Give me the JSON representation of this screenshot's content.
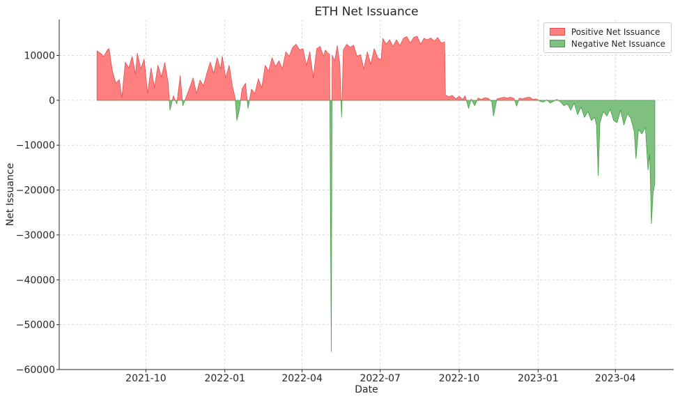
{
  "chart_data": {
    "type": "area",
    "title": "ETH Net Issuance",
    "xlabel": "Date",
    "ylabel": "Net Issuance",
    "x_range": [
      "2021-06-22",
      "2023-06-08"
    ],
    "ylim": [
      -60000,
      18000
    ],
    "x_ticks": [
      {
        "date": "2021-10-01",
        "label": "2021-10"
      },
      {
        "date": "2022-01-01",
        "label": "2022-01"
      },
      {
        "date": "2022-04-01",
        "label": "2022-04"
      },
      {
        "date": "2022-07-01",
        "label": "2022-07"
      },
      {
        "date": "2022-10-01",
        "label": "2022-10"
      },
      {
        "date": "2023-01-01",
        "label": "2023-01"
      },
      {
        "date": "2023-04-01",
        "label": "2023-04"
      }
    ],
    "y_ticks": [
      {
        "value": 10000,
        "label": "10000"
      },
      {
        "value": 0,
        "label": "0"
      },
      {
        "value": -10000,
        "label": "−10000"
      },
      {
        "value": -20000,
        "label": "−20000"
      },
      {
        "value": -30000,
        "label": "−30000"
      },
      {
        "value": -40000,
        "label": "−40000"
      },
      {
        "value": -50000,
        "label": "−50000"
      },
      {
        "value": -60000,
        "label": "−60000"
      }
    ],
    "grid": true,
    "legend_position": "top-right",
    "series": [
      {
        "name": "Positive Net Issuance",
        "color": "#ff7f7f",
        "edge_color": "#e05050"
      },
      {
        "name": "Negative Net Issuance",
        "color": "#7fbf7f",
        "edge_color": "#3f9f3f"
      }
    ],
    "net_issuance": [
      {
        "date": "2021-08-05",
        "value": 11000
      },
      {
        "date": "2021-08-09",
        "value": 10500
      },
      {
        "date": "2021-08-13",
        "value": 9800
      },
      {
        "date": "2021-08-17",
        "value": 11200
      },
      {
        "date": "2021-08-19",
        "value": 11500
      },
      {
        "date": "2021-08-23",
        "value": 6500
      },
      {
        "date": "2021-08-27",
        "value": 3800
      },
      {
        "date": "2021-08-31",
        "value": 4600
      },
      {
        "date": "2021-09-03",
        "value": 600
      },
      {
        "date": "2021-09-07",
        "value": 8500
      },
      {
        "date": "2021-09-11",
        "value": 7200
      },
      {
        "date": "2021-09-15",
        "value": 9800
      },
      {
        "date": "2021-09-19",
        "value": 5800
      },
      {
        "date": "2021-09-21",
        "value": 10500
      },
      {
        "date": "2021-09-25",
        "value": 7000
      },
      {
        "date": "2021-09-29",
        "value": 9200
      },
      {
        "date": "2021-10-03",
        "value": 1500
      },
      {
        "date": "2021-10-07",
        "value": 7200
      },
      {
        "date": "2021-10-11",
        "value": 2800
      },
      {
        "date": "2021-10-15",
        "value": 7800
      },
      {
        "date": "2021-10-19",
        "value": 5200
      },
      {
        "date": "2021-10-23",
        "value": 8400
      },
      {
        "date": "2021-10-27",
        "value": 3800
      },
      {
        "date": "2021-10-29",
        "value": -2200
      },
      {
        "date": "2021-11-02",
        "value": 1000
      },
      {
        "date": "2021-11-06",
        "value": -800
      },
      {
        "date": "2021-11-10",
        "value": 5500
      },
      {
        "date": "2021-11-13",
        "value": -1200
      },
      {
        "date": "2021-11-17",
        "value": 800
      },
      {
        "date": "2021-11-21",
        "value": 2800
      },
      {
        "date": "2021-11-25",
        "value": 5000
      },
      {
        "date": "2021-11-29",
        "value": 1500
      },
      {
        "date": "2021-12-03",
        "value": 4500
      },
      {
        "date": "2021-12-07",
        "value": 3200
      },
      {
        "date": "2021-12-11",
        "value": 6000
      },
      {
        "date": "2021-12-15",
        "value": 8500
      },
      {
        "date": "2021-12-19",
        "value": 6000
      },
      {
        "date": "2021-12-23",
        "value": 9500
      },
      {
        "date": "2021-12-27",
        "value": 7000
      },
      {
        "date": "2021-12-29",
        "value": 9800
      },
      {
        "date": "2022-01-02",
        "value": 5000
      },
      {
        "date": "2022-01-06",
        "value": 7800
      },
      {
        "date": "2022-01-10",
        "value": 3000
      },
      {
        "date": "2022-01-13",
        "value": 500
      },
      {
        "date": "2022-01-15",
        "value": -4500
      },
      {
        "date": "2022-01-18",
        "value": -2000
      },
      {
        "date": "2022-01-21",
        "value": 2500
      },
      {
        "date": "2022-01-25",
        "value": 3800
      },
      {
        "date": "2022-01-28",
        "value": -1800
      },
      {
        "date": "2022-02-01",
        "value": 2500
      },
      {
        "date": "2022-02-05",
        "value": 1500
      },
      {
        "date": "2022-02-09",
        "value": 4800
      },
      {
        "date": "2022-02-13",
        "value": 2800
      },
      {
        "date": "2022-02-17",
        "value": 7800
      },
      {
        "date": "2022-02-21",
        "value": 6500
      },
      {
        "date": "2022-02-25",
        "value": 9500
      },
      {
        "date": "2022-03-01",
        "value": 7500
      },
      {
        "date": "2022-03-05",
        "value": 8800
      },
      {
        "date": "2022-03-09",
        "value": 7000
      },
      {
        "date": "2022-03-13",
        "value": 10800
      },
      {
        "date": "2022-03-17",
        "value": 9800
      },
      {
        "date": "2022-03-21",
        "value": 11800
      },
      {
        "date": "2022-03-25",
        "value": 12500
      },
      {
        "date": "2022-03-29",
        "value": 11200
      },
      {
        "date": "2022-04-02",
        "value": 11500
      },
      {
        "date": "2022-04-06",
        "value": 7800
      },
      {
        "date": "2022-04-10",
        "value": 10800
      },
      {
        "date": "2022-04-14",
        "value": 5000
      },
      {
        "date": "2022-04-18",
        "value": 11500
      },
      {
        "date": "2022-04-22",
        "value": 12000
      },
      {
        "date": "2022-04-26",
        "value": 9800
      },
      {
        "date": "2022-04-28",
        "value": 11200
      },
      {
        "date": "2022-05-01",
        "value": 10500
      },
      {
        "date": "2022-05-03",
        "value": 10300
      },
      {
        "date": "2022-05-05",
        "value": -56000
      },
      {
        "date": "2022-05-06",
        "value": 10000
      },
      {
        "date": "2022-05-09",
        "value": 8800
      },
      {
        "date": "2022-05-12",
        "value": 12200
      },
      {
        "date": "2022-05-15",
        "value": 8000
      },
      {
        "date": "2022-05-17",
        "value": -3800
      },
      {
        "date": "2022-05-19",
        "value": 11200
      },
      {
        "date": "2022-05-23",
        "value": 12500
      },
      {
        "date": "2022-05-27",
        "value": 11800
      },
      {
        "date": "2022-05-31",
        "value": 12300
      },
      {
        "date": "2022-06-04",
        "value": 9800
      },
      {
        "date": "2022-06-08",
        "value": 10200
      },
      {
        "date": "2022-06-12",
        "value": 7000
      },
      {
        "date": "2022-06-16",
        "value": 10800
      },
      {
        "date": "2022-06-20",
        "value": 8000
      },
      {
        "date": "2022-06-24",
        "value": 11500
      },
      {
        "date": "2022-06-28",
        "value": 9500
      },
      {
        "date": "2022-07-02",
        "value": 9000
      },
      {
        "date": "2022-07-04",
        "value": 13800
      },
      {
        "date": "2022-07-08",
        "value": 12500
      },
      {
        "date": "2022-07-12",
        "value": 13500
      },
      {
        "date": "2022-07-16",
        "value": 12000
      },
      {
        "date": "2022-07-20",
        "value": 13500
      },
      {
        "date": "2022-07-24",
        "value": 12200
      },
      {
        "date": "2022-07-28",
        "value": 13800
      },
      {
        "date": "2022-08-01",
        "value": 14200
      },
      {
        "date": "2022-08-05",
        "value": 12800
      },
      {
        "date": "2022-08-09",
        "value": 14000
      },
      {
        "date": "2022-08-13",
        "value": 14300
      },
      {
        "date": "2022-08-17",
        "value": 12500
      },
      {
        "date": "2022-08-21",
        "value": 13800
      },
      {
        "date": "2022-08-25",
        "value": 13500
      },
      {
        "date": "2022-08-29",
        "value": 13900
      },
      {
        "date": "2022-09-02",
        "value": 13200
      },
      {
        "date": "2022-09-06",
        "value": 14000
      },
      {
        "date": "2022-09-10",
        "value": 12800
      },
      {
        "date": "2022-09-14",
        "value": 13000
      },
      {
        "date": "2022-09-15",
        "value": 1200
      },
      {
        "date": "2022-09-19",
        "value": 800
      },
      {
        "date": "2022-09-23",
        "value": 1100
      },
      {
        "date": "2022-09-27",
        "value": 300
      },
      {
        "date": "2022-10-01",
        "value": 900
      },
      {
        "date": "2022-10-05",
        "value": 200
      },
      {
        "date": "2022-10-08",
        "value": 1000
      },
      {
        "date": "2022-10-12",
        "value": -1800
      },
      {
        "date": "2022-10-15",
        "value": 300
      },
      {
        "date": "2022-10-19",
        "value": -1200
      },
      {
        "date": "2022-10-23",
        "value": 500
      },
      {
        "date": "2022-10-27",
        "value": 200
      },
      {
        "date": "2022-10-31",
        "value": 600
      },
      {
        "date": "2022-11-04",
        "value": 400
      },
      {
        "date": "2022-11-08",
        "value": -300
      },
      {
        "date": "2022-11-10",
        "value": -3500
      },
      {
        "date": "2022-11-14",
        "value": 300
      },
      {
        "date": "2022-11-18",
        "value": 500
      },
      {
        "date": "2022-11-22",
        "value": 700
      },
      {
        "date": "2022-11-26",
        "value": 500
      },
      {
        "date": "2022-11-30",
        "value": 700
      },
      {
        "date": "2022-12-04",
        "value": 400
      },
      {
        "date": "2022-12-07",
        "value": -1300
      },
      {
        "date": "2022-12-10",
        "value": 500
      },
      {
        "date": "2022-12-14",
        "value": 300
      },
      {
        "date": "2022-12-18",
        "value": 600
      },
      {
        "date": "2022-12-22",
        "value": 700
      },
      {
        "date": "2022-12-26",
        "value": 200
      },
      {
        "date": "2022-12-30",
        "value": 300
      },
      {
        "date": "2023-01-03",
        "value": -200
      },
      {
        "date": "2023-01-07",
        "value": -400
      },
      {
        "date": "2023-01-11",
        "value": 100
      },
      {
        "date": "2023-01-15",
        "value": -600
      },
      {
        "date": "2023-01-19",
        "value": -200
      },
      {
        "date": "2023-01-23",
        "value": 200
      },
      {
        "date": "2023-01-27",
        "value": -300
      },
      {
        "date": "2023-01-31",
        "value": -1200
      },
      {
        "date": "2023-02-04",
        "value": -800
      },
      {
        "date": "2023-02-08",
        "value": -2200
      },
      {
        "date": "2023-02-12",
        "value": -600
      },
      {
        "date": "2023-02-16",
        "value": -3200
      },
      {
        "date": "2023-02-20",
        "value": -1500
      },
      {
        "date": "2023-02-24",
        "value": -3800
      },
      {
        "date": "2023-02-28",
        "value": -2500
      },
      {
        "date": "2023-03-04",
        "value": -4500
      },
      {
        "date": "2023-03-08",
        "value": -3800
      },
      {
        "date": "2023-03-10",
        "value": -5500
      },
      {
        "date": "2023-03-12",
        "value": -16800
      },
      {
        "date": "2023-03-14",
        "value": -5000
      },
      {
        "date": "2023-03-18",
        "value": -2500
      },
      {
        "date": "2023-03-22",
        "value": -3500
      },
      {
        "date": "2023-03-26",
        "value": -2000
      },
      {
        "date": "2023-03-30",
        "value": -4500
      },
      {
        "date": "2023-04-03",
        "value": -5000
      },
      {
        "date": "2023-04-07",
        "value": -2200
      },
      {
        "date": "2023-04-11",
        "value": -5500
      },
      {
        "date": "2023-04-15",
        "value": -3000
      },
      {
        "date": "2023-04-19",
        "value": -4000
      },
      {
        "date": "2023-04-23",
        "value": -7000
      },
      {
        "date": "2023-04-25",
        "value": -13000
      },
      {
        "date": "2023-04-28",
        "value": -6500
      },
      {
        "date": "2023-05-02",
        "value": -7500
      },
      {
        "date": "2023-05-06",
        "value": -6000
      },
      {
        "date": "2023-05-09",
        "value": -15500
      },
      {
        "date": "2023-05-11",
        "value": -12000
      },
      {
        "date": "2023-05-13",
        "value": -27500
      },
      {
        "date": "2023-05-15",
        "value": -20500
      },
      {
        "date": "2023-05-17",
        "value": -18500
      }
    ]
  }
}
